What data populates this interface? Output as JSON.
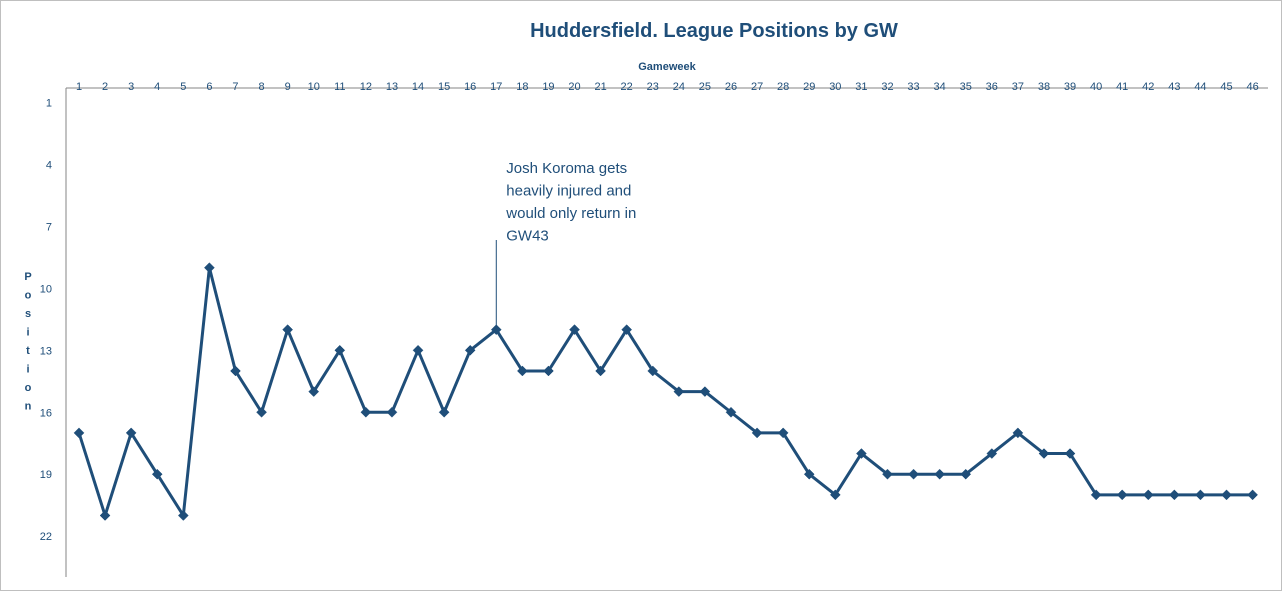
{
  "chart_data": {
    "type": "line",
    "title": "Huddersfield. League Positions by GW",
    "xlabel": "Gameweek",
    "ylabel": "Position",
    "x_axis_position": "top",
    "y_reversed": true,
    "ylim": [
      1,
      23
    ],
    "y_ticks": [
      1,
      4,
      7,
      10,
      13,
      16,
      19,
      22
    ],
    "grid": false,
    "legend": "none",
    "categories": [
      1,
      2,
      3,
      4,
      5,
      6,
      7,
      8,
      9,
      10,
      11,
      12,
      13,
      14,
      15,
      16,
      17,
      18,
      19,
      20,
      21,
      22,
      23,
      24,
      25,
      26,
      27,
      28,
      29,
      30,
      31,
      32,
      33,
      34,
      35,
      36,
      37,
      38,
      39,
      40,
      41,
      42,
      43,
      44,
      45,
      46
    ],
    "series": [
      {
        "values": [
          17,
          21,
          17,
          19,
          21,
          9,
          14,
          16,
          12,
          15,
          13,
          16,
          16,
          13,
          16,
          13,
          12,
          14,
          14,
          12,
          14,
          12,
          14,
          15,
          15,
          16,
          17,
          17,
          19,
          20,
          18,
          19,
          19,
          19,
          19,
          18,
          17,
          18,
          18,
          20,
          20,
          20,
          20,
          20,
          20,
          20
        ],
        "color": "#1f4e79",
        "marker": "diamond"
      }
    ],
    "annotations": [
      {
        "x": 17,
        "y": 12,
        "lines": [
          "Josh Koroma gets",
          "heavily injured and",
          "would only return in",
          "GW43"
        ]
      }
    ]
  }
}
